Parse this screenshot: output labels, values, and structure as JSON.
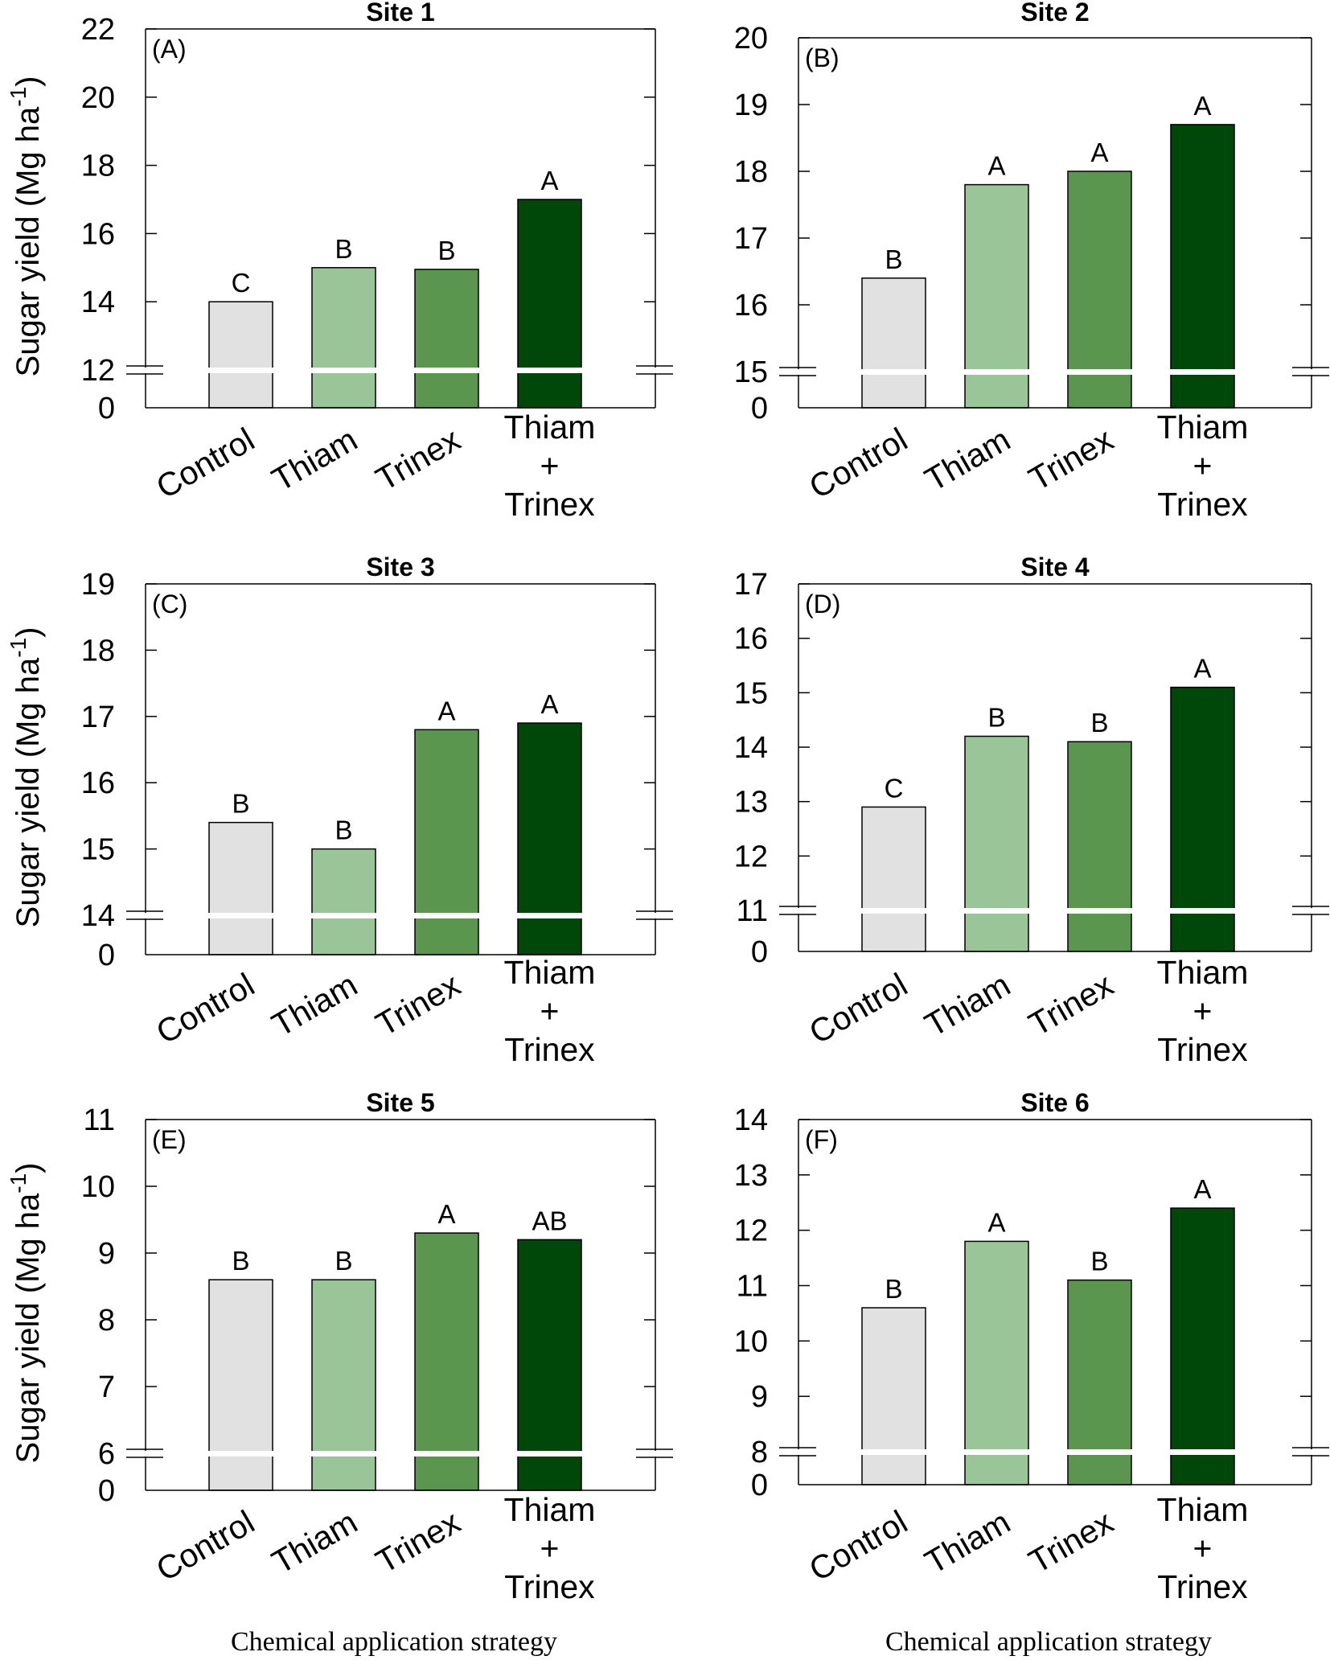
{
  "chart_data": [
    {
      "type": "bar",
      "title": "Site 1",
      "panel_label": "(A)",
      "ylabel": "Sugar yield (Mg ha-1)",
      "ylabel_base": "Sugar yield (Mg ha",
      "ylabel_exp": "-1",
      "xlabel": "",
      "categories": [
        "Control",
        "Thiam",
        "Trinex",
        "Thiam + Trinex"
      ],
      "values": [
        14.0,
        15.0,
        14.95,
        17.0
      ],
      "letters": [
        "C",
        "B",
        "B",
        "A"
      ],
      "colors": [
        "#e1e1e1",
        "#9ac598",
        "#5b964f",
        "#00470a"
      ],
      "ylim": [
        12,
        22
      ],
      "yticks": [
        14,
        16,
        18,
        20,
        22
      ],
      "axis_break": {
        "low_tick": "0",
        "break_at": "12"
      }
    },
    {
      "type": "bar",
      "title": "Site 2",
      "panel_label": "(B)",
      "ylabel": "",
      "xlabel": "",
      "categories": [
        "Control",
        "Thiam",
        "Trinex",
        "Thiam + Trinex"
      ],
      "values": [
        16.4,
        17.8,
        18.0,
        18.7
      ],
      "letters": [
        "B",
        "A",
        "A",
        "A"
      ],
      "colors": [
        "#e1e1e1",
        "#9ac598",
        "#5b964f",
        "#00470a"
      ],
      "ylim": [
        15,
        20
      ],
      "yticks": [
        16,
        17,
        18,
        19,
        20
      ],
      "axis_break": {
        "low_tick": "0",
        "break_at": "15"
      }
    },
    {
      "type": "bar",
      "title": "Site 3",
      "panel_label": "(C)",
      "ylabel": "Sugar yield (Mg ha-1)",
      "ylabel_base": "Sugar yield (Mg ha",
      "ylabel_exp": "-1",
      "xlabel": "",
      "categories": [
        "Control",
        "Thiam",
        "Trinex",
        "Thiam + Trinex"
      ],
      "values": [
        15.4,
        15.0,
        16.8,
        16.9
      ],
      "letters": [
        "B",
        "B",
        "A",
        "A"
      ],
      "colors": [
        "#e1e1e1",
        "#9ac598",
        "#5b964f",
        "#00470a"
      ],
      "ylim": [
        14,
        19
      ],
      "yticks": [
        15,
        16,
        17,
        18,
        19
      ],
      "axis_break": {
        "low_tick": "0",
        "break_at": "14"
      }
    },
    {
      "type": "bar",
      "title": "Site 4",
      "panel_label": "(D)",
      "ylabel": "",
      "xlabel": "",
      "categories": [
        "Control",
        "Thiam",
        "Trinex",
        "Thiam + Trinex"
      ],
      "values": [
        12.9,
        14.2,
        14.1,
        15.1
      ],
      "letters": [
        "C",
        "B",
        "B",
        "A"
      ],
      "colors": [
        "#e1e1e1",
        "#9ac598",
        "#5b964f",
        "#00470a"
      ],
      "ylim": [
        11,
        17
      ],
      "yticks": [
        12,
        13,
        14,
        15,
        16,
        17
      ],
      "axis_break": {
        "low_tick": "0",
        "break_at": "11"
      }
    },
    {
      "type": "bar",
      "title": "Site 5",
      "panel_label": "(E)",
      "ylabel": "Sugar yield (Mg ha-1)",
      "ylabel_base": "Sugar yield (Mg ha",
      "ylabel_exp": "-1",
      "xlabel": "Chemical application strategy",
      "categories": [
        "Control",
        "Thiam",
        "Trinex",
        "Thiam + Trinex"
      ],
      "values": [
        8.6,
        8.6,
        9.3,
        9.2
      ],
      "letters": [
        "B",
        "B",
        "A",
        "AB"
      ],
      "colors": [
        "#e1e1e1",
        "#9ac598",
        "#5b964f",
        "#00470a"
      ],
      "ylim": [
        6,
        11
      ],
      "yticks": [
        7,
        8,
        9,
        10,
        11
      ],
      "axis_break": {
        "low_tick": "0",
        "break_at": "6"
      }
    },
    {
      "type": "bar",
      "title": "Site 6",
      "panel_label": "(F)",
      "ylabel": "",
      "xlabel": "Chemical application strategy",
      "categories": [
        "Control",
        "Thiam",
        "Trinex",
        "Thiam + Trinex"
      ],
      "values": [
        10.6,
        11.8,
        11.1,
        12.4
      ],
      "letters": [
        "B",
        "A",
        "B",
        "A"
      ],
      "colors": [
        "#e1e1e1",
        "#9ac598",
        "#5b964f",
        "#00470a"
      ],
      "ylim": [
        8,
        14
      ],
      "yticks": [
        9,
        10,
        11,
        12,
        13,
        14
      ],
      "axis_break": {
        "low_tick": "0",
        "break_at": "8"
      }
    }
  ]
}
